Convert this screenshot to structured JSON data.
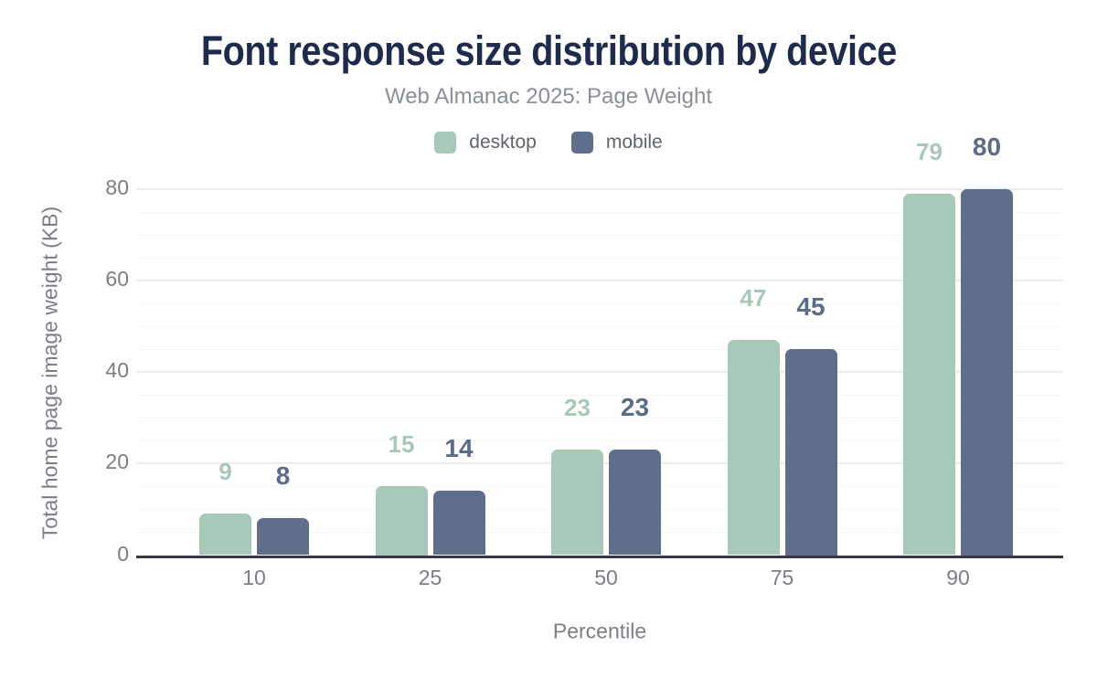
{
  "header": {
    "title": "Font response size distribution by device",
    "subtitle": "Web Almanac 2025: Page Weight"
  },
  "legend": {
    "items": [
      {
        "label": "desktop",
        "color": "#a9c9b8"
      },
      {
        "label": "mobile",
        "color": "#5f6e8a"
      }
    ]
  },
  "axes": {
    "x_label": "Percentile",
    "y_label": "Total home page image weight (KB)"
  },
  "chart_data": {
    "type": "bar",
    "title": "Font response size distribution by device",
    "subtitle": "Web Almanac 2025: Page Weight",
    "categories": [
      "10",
      "25",
      "50",
      "75",
      "90"
    ],
    "series": [
      {
        "name": "desktop",
        "color": "#a9c9b8",
        "label_color": "#a9c9b8",
        "values": [
          9,
          15,
          23,
          47,
          79
        ]
      },
      {
        "name": "mobile",
        "color": "#5f6e8a",
        "label_color": "#5b6b89",
        "values": [
          8,
          14,
          23,
          45,
          80
        ]
      }
    ],
    "xlabel": "Percentile",
    "ylabel": "Total home page image weight (KB)",
    "ylim": [
      0,
      80
    ],
    "yticks": [
      0,
      20,
      40,
      60,
      80
    ],
    "minor_gridline_step": 5,
    "major_gridline_step": 20,
    "grid": true,
    "legend_position": "top",
    "value_labels": true
  },
  "colors": {
    "title": "#1e2b4d",
    "subtitle": "#8b8f96",
    "desktop": "#a9c9b8",
    "mobile": "#5f6e8a",
    "axis_text": "#7b7e85",
    "baseline": "#35383c",
    "grid_major": "#ececec",
    "grid_minor": "#f6f6f6",
    "background": "#ffffff"
  }
}
